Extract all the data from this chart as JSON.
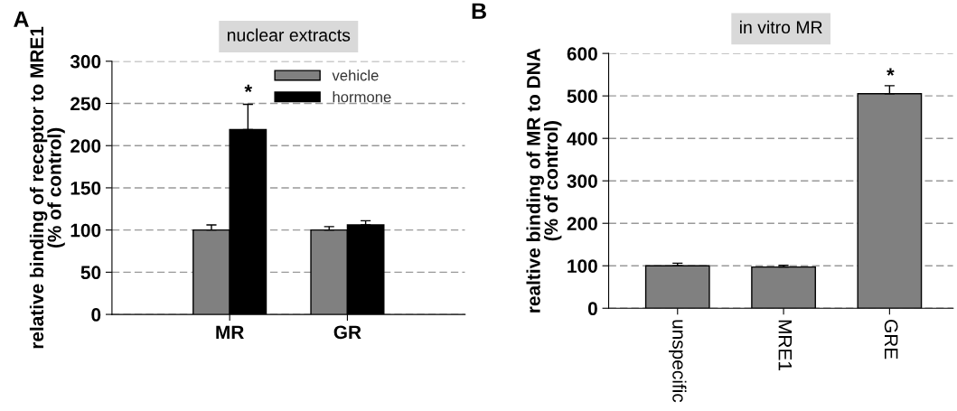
{
  "chart_data": [
    {
      "type": "bar",
      "title": "nuclear extracts",
      "ylabel": "relative binding of receptor to MRE1\n(% of control)",
      "categories": [
        "MR",
        "GR"
      ],
      "series": [
        {
          "name": "vehicle",
          "color": "#808080",
          "values": [
            100,
            100
          ],
          "errors": [
            6,
            4
          ]
        },
        {
          "name": "hormone",
          "color": "#000000",
          "values": [
            219,
            106
          ],
          "errors": [
            30,
            5
          ]
        }
      ],
      "ylim": [
        0,
        300
      ],
      "yticks": [
        0,
        50,
        100,
        150,
        200,
        250,
        300
      ],
      "grid": "y",
      "legend": "top right",
      "annotations": [
        "A",
        "*"
      ]
    },
    {
      "type": "bar",
      "title": "in vitro MR",
      "ylabel": "realtive binding of MR to DNA\n(% of control)",
      "categories": [
        "unspecific",
        "MRE1",
        "GRE"
      ],
      "series": [
        {
          "color": "#808080",
          "values": [
            100,
            97,
            505
          ],
          "errors": [
            6,
            4,
            19
          ]
        }
      ],
      "ylim": [
        0,
        600
      ],
      "yticks": [
        0,
        100,
        200,
        300,
        400,
        500,
        600
      ],
      "grid": "y",
      "annotations": [
        "B",
        "*"
      ]
    }
  ]
}
